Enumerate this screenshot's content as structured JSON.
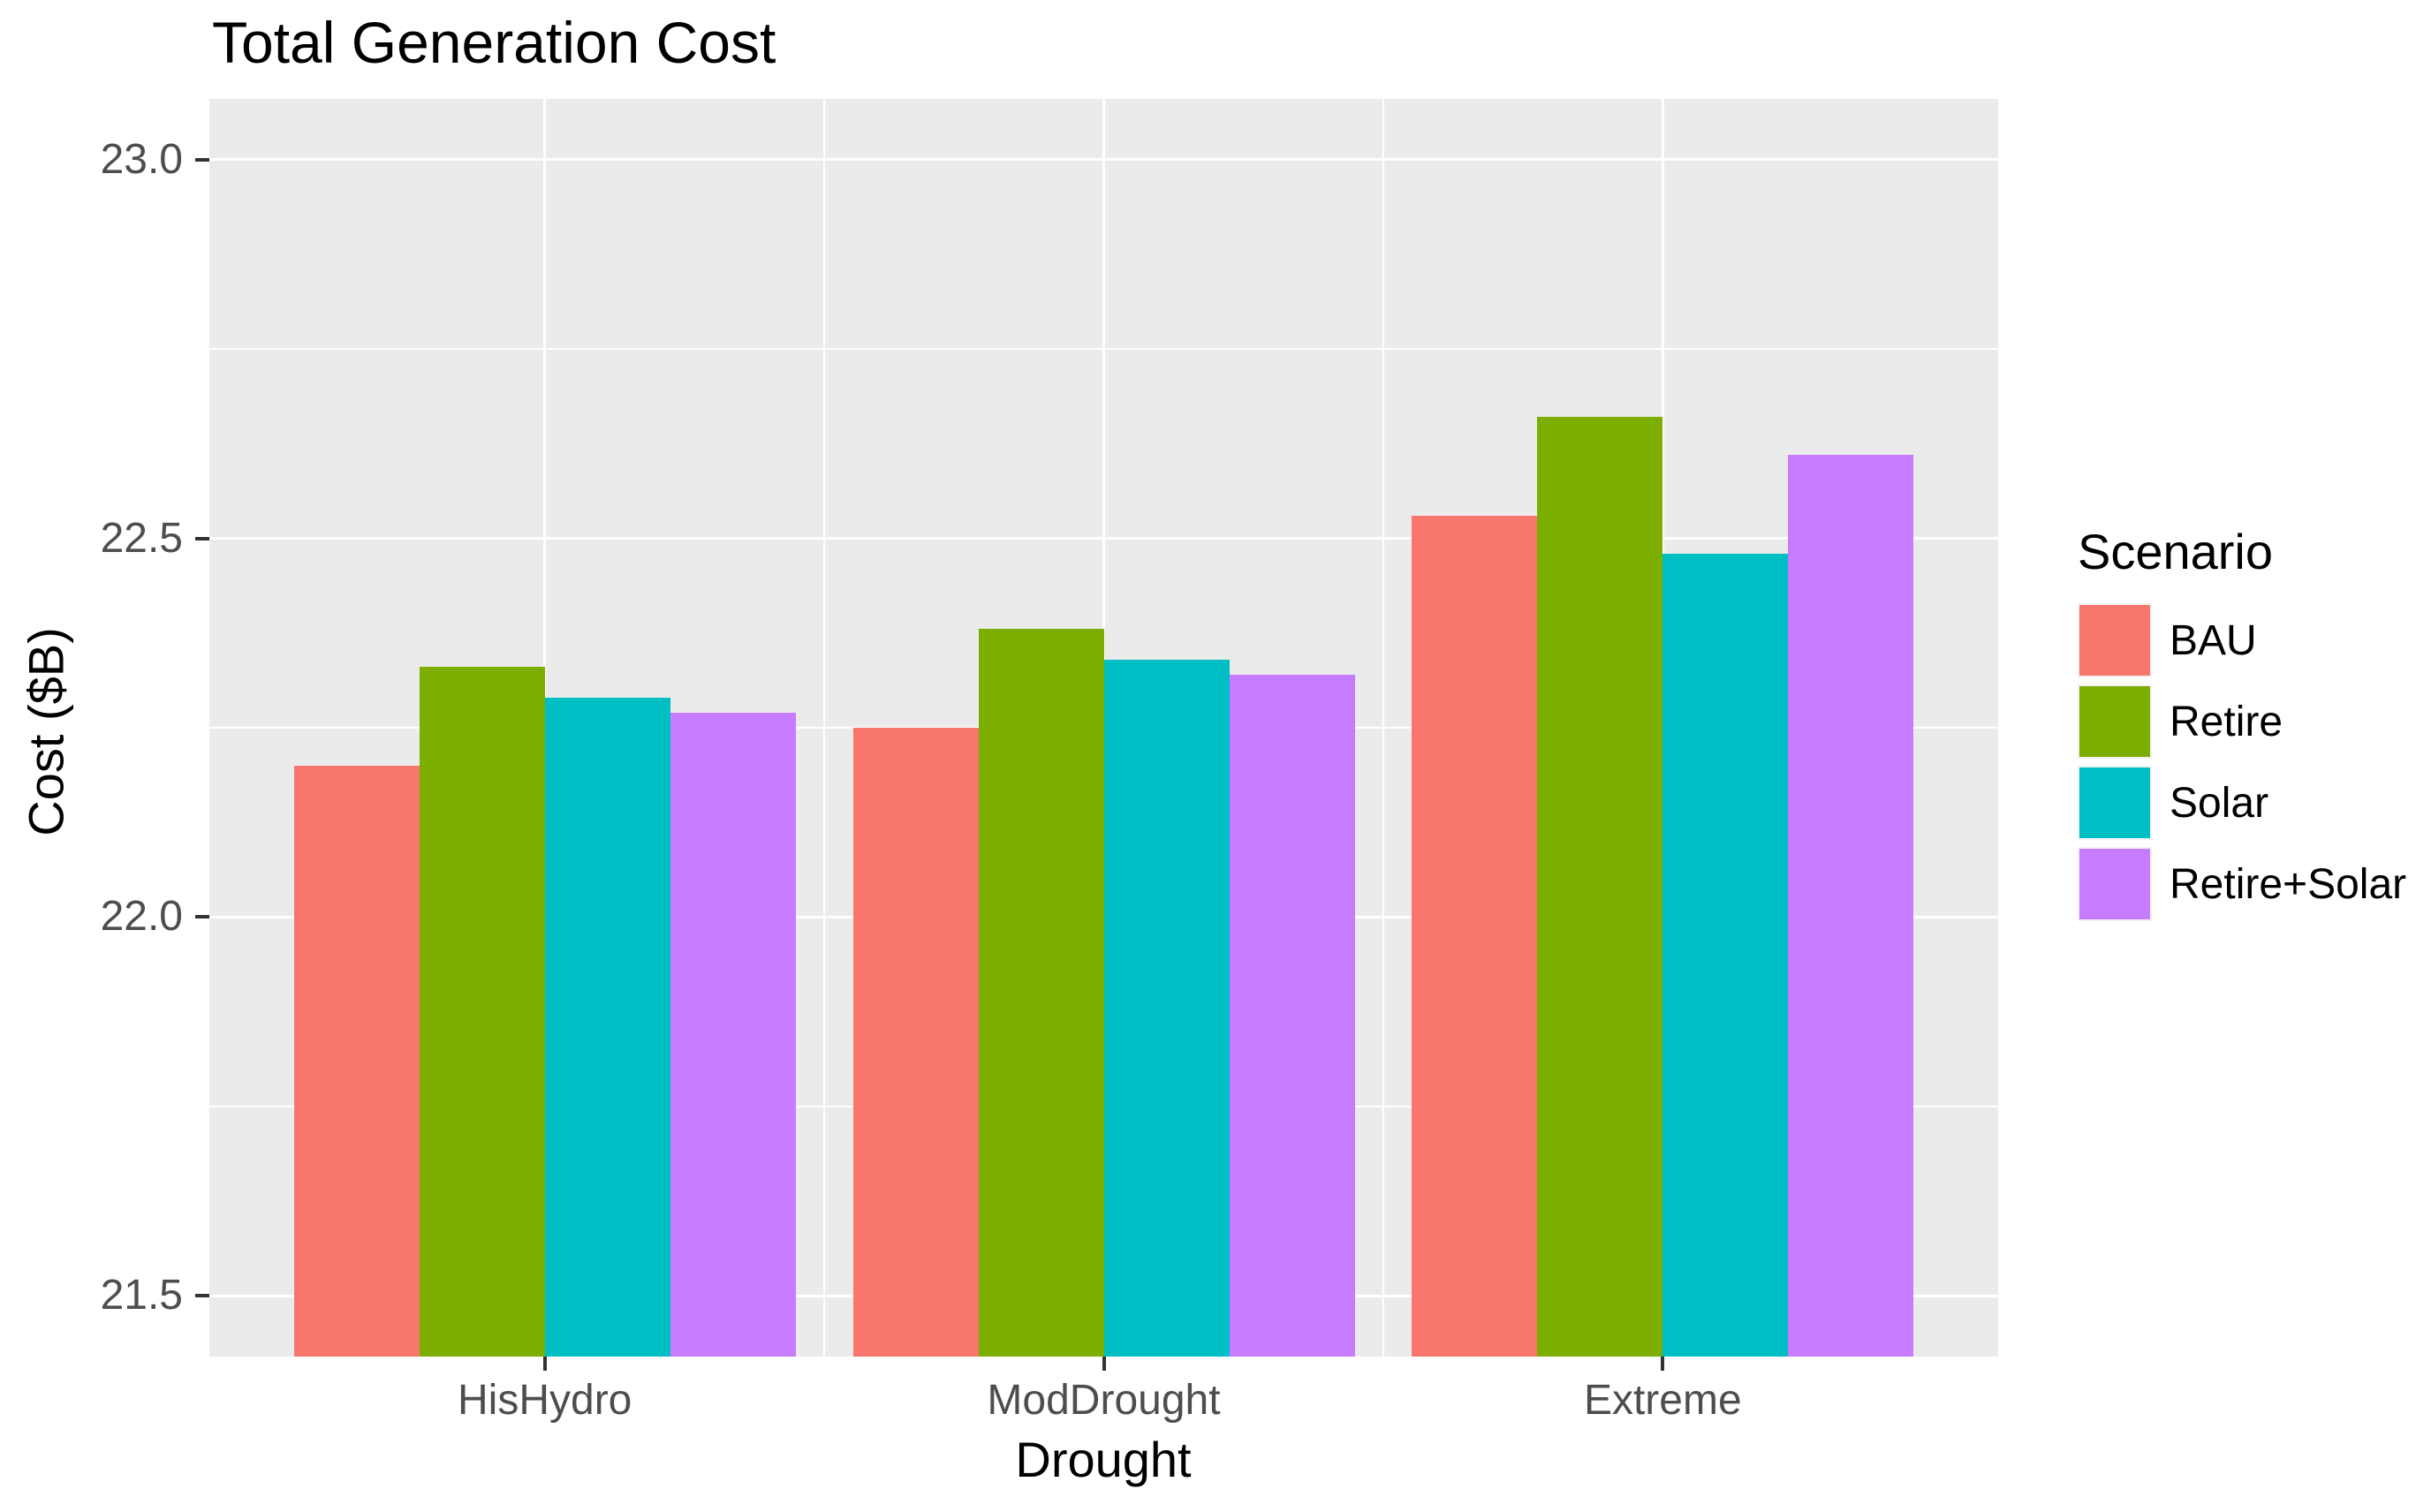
{
  "chart_data": {
    "type": "bar",
    "title": "Total Generation Cost",
    "xlabel": "Drought",
    "ylabel": "Cost ($B)",
    "categories": [
      "HisHydro",
      "ModDrought",
      "Extreme"
    ],
    "series": [
      {
        "name": "BAU",
        "color": "#F8766D",
        "values": [
          22.2,
          22.25,
          22.53
        ]
      },
      {
        "name": "Retire",
        "color": "#7CAE00",
        "values": [
          22.33,
          22.38,
          22.66
        ]
      },
      {
        "name": "Solar",
        "color": "#00BFC4",
        "values": [
          22.29,
          22.34,
          22.48
        ]
      },
      {
        "name": "Retire+Solar",
        "color": "#C77CFF",
        "values": [
          22.27,
          22.32,
          22.61
        ]
      }
    ],
    "legend_title": "Scenario",
    "legend_position": "right",
    "ylim": [
      21.42,
      23.08
    ],
    "y_ticks": [
      {
        "value": 23.0,
        "label": "23.0"
      },
      {
        "value": 22.5,
        "label": "22.5"
      },
      {
        "value": 22.0,
        "label": "22.0"
      },
      {
        "value": 21.5,
        "label": "21.5"
      }
    ],
    "y_minor_gridlines": [
      22.75,
      22.25,
      21.75
    ],
    "grid": true,
    "panel_background": "#EBEBEB",
    "gridline_color": "#FFFFFF",
    "axis_text_color": "#4D4D4D",
    "title_color": "#000000"
  }
}
